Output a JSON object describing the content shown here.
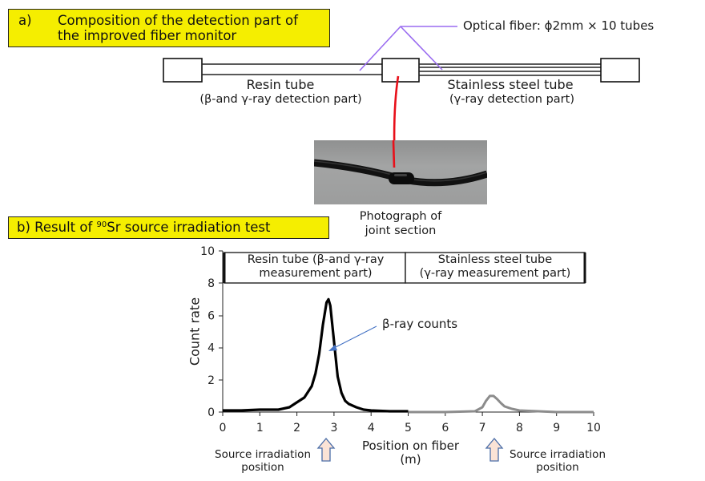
{
  "section_a": {
    "prefix": "a)",
    "title_line1": "Composition of the detection part of",
    "title_line2": "the improved fiber monitor",
    "optical_fiber_label": "Optical fiber: ϕ2mm × 10 tubes",
    "resin_tube_label": "Resin tube",
    "resin_tube_sublabel": "(β-and γ-ray detection part)",
    "steel_tube_label": "Stainless steel tube",
    "steel_tube_sublabel": "(γ-ray detection part)",
    "photo_caption_line1": "Photograph of",
    "photo_caption_line2": "joint section"
  },
  "section_b": {
    "title_pre": "b) Result of ",
    "title_sup": "90",
    "title_post": "Sr source irradiation test",
    "header_left_line1": "Resin tube (β-and γ-ray",
    "header_left_line2": "measurement part)",
    "header_right_line1": "Stainless steel tube",
    "header_right_line2": "(γ-ray measurement part)",
    "annotation": "β-ray counts",
    "source_label_line1": "Source irradiation",
    "source_label_line2": "position"
  },
  "colors": {
    "label_bg": "#f5ee00",
    "fiber_pointer": "#9a6cf0",
    "joint_pointer": "#e8101a",
    "resin_series": "#000000",
    "steel_series": "#8c8c8c",
    "annotation_arrow": "#4472c4",
    "source_arrow_fill": "#fbe3d6",
    "source_arrow_stroke": "#4a6da8"
  },
  "chart_data": {
    "type": "line",
    "title": "Result of 90Sr source irradiation test",
    "xlabel": "Position on fiber (m)",
    "ylabel": "Count rate",
    "xlim": [
      0,
      10
    ],
    "ylim": [
      0,
      10
    ],
    "xticks": [
      0,
      1,
      2,
      3,
      4,
      5,
      6,
      7,
      8,
      9,
      10
    ],
    "yticks": [
      0,
      2,
      4,
      6,
      8,
      10
    ],
    "grid": false,
    "series": [
      {
        "name": "Resin tube (β-and γ-ray measurement part)",
        "color": "#000000",
        "x": [
          0,
          0.5,
          1.0,
          1.5,
          1.8,
          2.0,
          2.2,
          2.4,
          2.5,
          2.6,
          2.7,
          2.8,
          2.85,
          2.9,
          3.0,
          3.1,
          3.2,
          3.3,
          3.4,
          3.6,
          3.8,
          4.0,
          4.5,
          5.0
        ],
        "y": [
          0.1,
          0.1,
          0.15,
          0.15,
          0.3,
          0.6,
          0.9,
          1.6,
          2.4,
          3.6,
          5.4,
          6.8,
          7.0,
          6.6,
          4.4,
          2.2,
          1.2,
          0.7,
          0.5,
          0.3,
          0.15,
          0.1,
          0.05,
          0.05
        ]
      },
      {
        "name": "Stainless steel tube (γ-ray measurement part)",
        "color": "#8c8c8c",
        "x": [
          5.0,
          6.0,
          6.8,
          7.0,
          7.1,
          7.2,
          7.3,
          7.4,
          7.5,
          7.6,
          7.8,
          8.0,
          8.5,
          9.0,
          10.0
        ],
        "y": [
          0.0,
          0.0,
          0.05,
          0.3,
          0.7,
          1.0,
          1.0,
          0.8,
          0.55,
          0.35,
          0.2,
          0.1,
          0.05,
          0.0,
          0.0
        ]
      }
    ],
    "annotations": [
      {
        "text": "β-ray counts",
        "points_to": [
          2.95,
          3.8
        ]
      },
      {
        "text": "Source irradiation position",
        "x": 2.8
      },
      {
        "text": "Source irradiation position",
        "x": 7.3
      }
    ],
    "regions": [
      {
        "label": "Resin tube (β-and γ-ray measurement part)",
        "x_range": [
          0,
          4.95
        ],
        "y_range": [
          8,
          10
        ]
      },
      {
        "label": "Stainless steel tube (γ-ray measurement part)",
        "x_range": [
          4.95,
          9.8
        ],
        "y_range": [
          8,
          10
        ]
      }
    ]
  }
}
